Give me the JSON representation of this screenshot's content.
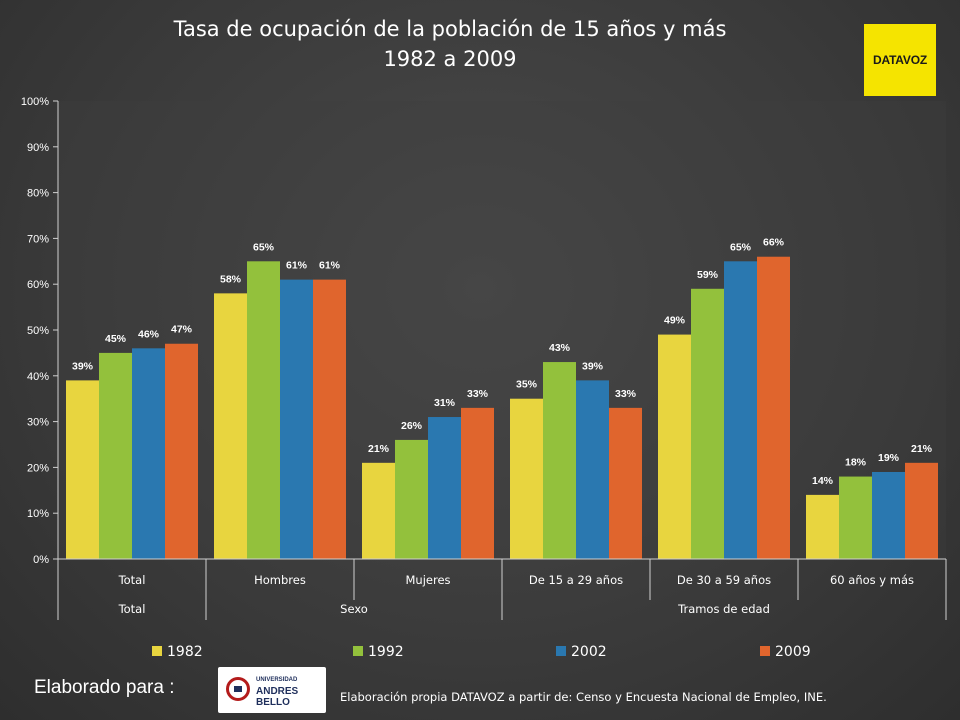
{
  "header": {
    "title_line1": "Tasa de ocupación de la población de 15 años y más",
    "title_line2": "1982 a 2009",
    "logo_text": "DATAVOZ"
  },
  "footer": {
    "elaborado": "Elaborado para :",
    "university_small": "UNIVERSIDAD",
    "university_name": "ANDRES BELLO",
    "source": "Elaboración propia DATAVOZ a partir de: Censo y Encuesta Nacional de Empleo, INE."
  },
  "colors": {
    "background": "#3b3b3b",
    "plot_area": "#404040",
    "text": "#ffffff",
    "logo_yellow": "#f5e400"
  },
  "chart_data": {
    "type": "bar",
    "title": "Tasa de ocupación de la población de 15 años y más 1982 a 2009",
    "categories": [
      "Total",
      "Hombres",
      "Mujeres",
      "De 15 a 29 años",
      "De 30 a 59 años",
      "60 años y más"
    ],
    "category_groups": [
      {
        "label": "Total",
        "span": 1
      },
      {
        "label": "Sexo",
        "span": 2
      },
      {
        "label": "Tramos de edad",
        "span": 3
      }
    ],
    "series": [
      {
        "name": "1982",
        "color": "#e8d53f",
        "values": [
          39,
          58,
          21,
          35,
          49,
          14
        ]
      },
      {
        "name": "1992",
        "color": "#93c13c",
        "values": [
          45,
          65,
          26,
          43,
          59,
          18
        ]
      },
      {
        "name": "2002",
        "color": "#2a78b0",
        "values": [
          46,
          61,
          31,
          39,
          65,
          19
        ]
      },
      {
        "name": "2009",
        "color": "#e0652d",
        "values": [
          47,
          61,
          33,
          33,
          66,
          21
        ]
      }
    ],
    "data_labels": [
      [
        "39%",
        "58%",
        "21%",
        "35%",
        "49%",
        "14%"
      ],
      [
        "45%",
        "65%",
        "26%",
        "43%",
        "59%",
        "18%"
      ],
      [
        "46%",
        "61%",
        "31%",
        "39%",
        "65%",
        "19%"
      ],
      [
        "47%",
        "61%",
        "33%",
        "33%",
        "66%",
        "21%"
      ]
    ],
    "ylim": [
      0,
      100
    ],
    "yticks": [
      "0%",
      "10%",
      "20%",
      "30%",
      "40%",
      "50%",
      "60%",
      "70%",
      "80%",
      "90%",
      "100%"
    ],
    "xlabel": "",
    "ylabel": "",
    "grid": false,
    "legend_position": "bottom"
  }
}
